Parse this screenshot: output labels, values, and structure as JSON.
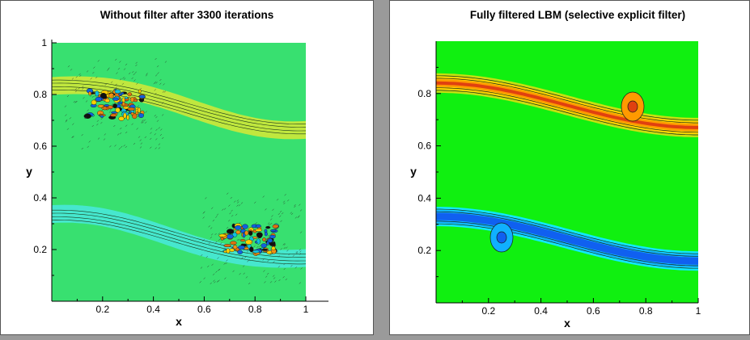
{
  "chart_data": [
    {
      "type": "contour",
      "title": "Without filter after 3300 iterations",
      "xlabel": "x",
      "ylabel": "y",
      "xlim": [
        0,
        1
      ],
      "ylim": [
        0,
        1
      ],
      "x_ticks": [
        "0.2",
        "0.4",
        "0.6",
        "0.8",
        "1"
      ],
      "y_ticks": [
        "0.2",
        "0.4",
        "0.6",
        "0.8",
        "1"
      ],
      "x_tick_values": [
        0.2,
        0.4,
        0.6,
        0.8,
        1.0
      ],
      "y_tick_values": [
        0.2,
        0.4,
        0.6,
        0.8,
        1.0
      ],
      "background_color": "#38e070",
      "upper_layer_color": "#cfe838",
      "lower_layer_color": "#48e8d8",
      "noise": true,
      "noise_centers": [
        [
          0.25,
          0.76
        ],
        [
          0.78,
          0.24
        ]
      ]
    },
    {
      "type": "contour",
      "title": "Fully filtered LBM (selective explicit filter)",
      "xlabel": "x",
      "ylabel": "y",
      "xlim": [
        0,
        1
      ],
      "ylim": [
        0,
        1
      ],
      "x_ticks": [
        "0.2",
        "0.4",
        "0.6",
        "0.8",
        "1"
      ],
      "y_ticks": [
        "0.2",
        "0.4",
        "0.6",
        "0.8"
      ],
      "x_tick_values": [
        0.2,
        0.4,
        0.6,
        0.8,
        1.0
      ],
      "y_tick_values": [
        0.2,
        0.4,
        0.6,
        0.8
      ],
      "background_color": "#10f010",
      "upper_layer_colors": [
        "#c8e010",
        "#ffd000",
        "#ff9a00",
        "#e04010"
      ],
      "lower_layer_colors": [
        "#10e8ff",
        "#10b0ff",
        "#1060f0"
      ],
      "vortex_centers": [
        [
          0.75,
          0.75
        ],
        [
          0.25,
          0.25
        ]
      ],
      "noise": false
    }
  ]
}
